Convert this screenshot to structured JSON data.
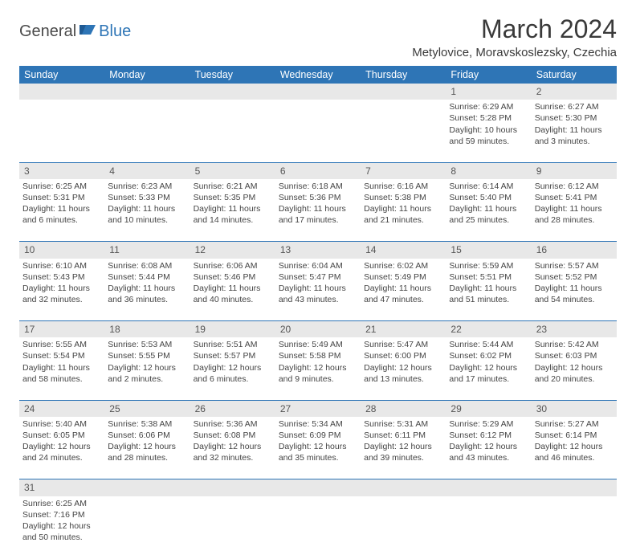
{
  "colors": {
    "header_bg": "#2e75b6",
    "header_fg": "#ffffff",
    "daynum_bg": "#e8e8e8",
    "row_divider": "#2e75b6",
    "text": "#444444",
    "logo_dark": "#4a4a4a",
    "logo_blue": "#2e75b6"
  },
  "typography": {
    "title_fontsize": 32,
    "location_fontsize": 15,
    "header_fontsize": 12.5,
    "daynum_fontsize": 12,
    "cell_fontsize": 10.5
  },
  "logo": {
    "part1": "General",
    "part2": "Blue"
  },
  "title": "March 2024",
  "location": "Metylovice, Moravskoslezsky, Czechia",
  "day_headers": [
    "Sunday",
    "Monday",
    "Tuesday",
    "Wednesday",
    "Thursday",
    "Friday",
    "Saturday"
  ],
  "weeks": [
    [
      {
        "n": "",
        "lines": []
      },
      {
        "n": "",
        "lines": []
      },
      {
        "n": "",
        "lines": []
      },
      {
        "n": "",
        "lines": []
      },
      {
        "n": "",
        "lines": []
      },
      {
        "n": "1",
        "lines": [
          "Sunrise: 6:29 AM",
          "Sunset: 5:28 PM",
          "Daylight: 10 hours",
          "and 59 minutes."
        ]
      },
      {
        "n": "2",
        "lines": [
          "Sunrise: 6:27 AM",
          "Sunset: 5:30 PM",
          "Daylight: 11 hours",
          "and 3 minutes."
        ]
      }
    ],
    [
      {
        "n": "3",
        "lines": [
          "Sunrise: 6:25 AM",
          "Sunset: 5:31 PM",
          "Daylight: 11 hours",
          "and 6 minutes."
        ]
      },
      {
        "n": "4",
        "lines": [
          "Sunrise: 6:23 AM",
          "Sunset: 5:33 PM",
          "Daylight: 11 hours",
          "and 10 minutes."
        ]
      },
      {
        "n": "5",
        "lines": [
          "Sunrise: 6:21 AM",
          "Sunset: 5:35 PM",
          "Daylight: 11 hours",
          "and 14 minutes."
        ]
      },
      {
        "n": "6",
        "lines": [
          "Sunrise: 6:18 AM",
          "Sunset: 5:36 PM",
          "Daylight: 11 hours",
          "and 17 minutes."
        ]
      },
      {
        "n": "7",
        "lines": [
          "Sunrise: 6:16 AM",
          "Sunset: 5:38 PM",
          "Daylight: 11 hours",
          "and 21 minutes."
        ]
      },
      {
        "n": "8",
        "lines": [
          "Sunrise: 6:14 AM",
          "Sunset: 5:40 PM",
          "Daylight: 11 hours",
          "and 25 minutes."
        ]
      },
      {
        "n": "9",
        "lines": [
          "Sunrise: 6:12 AM",
          "Sunset: 5:41 PM",
          "Daylight: 11 hours",
          "and 28 minutes."
        ]
      }
    ],
    [
      {
        "n": "10",
        "lines": [
          "Sunrise: 6:10 AM",
          "Sunset: 5:43 PM",
          "Daylight: 11 hours",
          "and 32 minutes."
        ]
      },
      {
        "n": "11",
        "lines": [
          "Sunrise: 6:08 AM",
          "Sunset: 5:44 PM",
          "Daylight: 11 hours",
          "and 36 minutes."
        ]
      },
      {
        "n": "12",
        "lines": [
          "Sunrise: 6:06 AM",
          "Sunset: 5:46 PM",
          "Daylight: 11 hours",
          "and 40 minutes."
        ]
      },
      {
        "n": "13",
        "lines": [
          "Sunrise: 6:04 AM",
          "Sunset: 5:47 PM",
          "Daylight: 11 hours",
          "and 43 minutes."
        ]
      },
      {
        "n": "14",
        "lines": [
          "Sunrise: 6:02 AM",
          "Sunset: 5:49 PM",
          "Daylight: 11 hours",
          "and 47 minutes."
        ]
      },
      {
        "n": "15",
        "lines": [
          "Sunrise: 5:59 AM",
          "Sunset: 5:51 PM",
          "Daylight: 11 hours",
          "and 51 minutes."
        ]
      },
      {
        "n": "16",
        "lines": [
          "Sunrise: 5:57 AM",
          "Sunset: 5:52 PM",
          "Daylight: 11 hours",
          "and 54 minutes."
        ]
      }
    ],
    [
      {
        "n": "17",
        "lines": [
          "Sunrise: 5:55 AM",
          "Sunset: 5:54 PM",
          "Daylight: 11 hours",
          "and 58 minutes."
        ]
      },
      {
        "n": "18",
        "lines": [
          "Sunrise: 5:53 AM",
          "Sunset: 5:55 PM",
          "Daylight: 12 hours",
          "and 2 minutes."
        ]
      },
      {
        "n": "19",
        "lines": [
          "Sunrise: 5:51 AM",
          "Sunset: 5:57 PM",
          "Daylight: 12 hours",
          "and 6 minutes."
        ]
      },
      {
        "n": "20",
        "lines": [
          "Sunrise: 5:49 AM",
          "Sunset: 5:58 PM",
          "Daylight: 12 hours",
          "and 9 minutes."
        ]
      },
      {
        "n": "21",
        "lines": [
          "Sunrise: 5:47 AM",
          "Sunset: 6:00 PM",
          "Daylight: 12 hours",
          "and 13 minutes."
        ]
      },
      {
        "n": "22",
        "lines": [
          "Sunrise: 5:44 AM",
          "Sunset: 6:02 PM",
          "Daylight: 12 hours",
          "and 17 minutes."
        ]
      },
      {
        "n": "23",
        "lines": [
          "Sunrise: 5:42 AM",
          "Sunset: 6:03 PM",
          "Daylight: 12 hours",
          "and 20 minutes."
        ]
      }
    ],
    [
      {
        "n": "24",
        "lines": [
          "Sunrise: 5:40 AM",
          "Sunset: 6:05 PM",
          "Daylight: 12 hours",
          "and 24 minutes."
        ]
      },
      {
        "n": "25",
        "lines": [
          "Sunrise: 5:38 AM",
          "Sunset: 6:06 PM",
          "Daylight: 12 hours",
          "and 28 minutes."
        ]
      },
      {
        "n": "26",
        "lines": [
          "Sunrise: 5:36 AM",
          "Sunset: 6:08 PM",
          "Daylight: 12 hours",
          "and 32 minutes."
        ]
      },
      {
        "n": "27",
        "lines": [
          "Sunrise: 5:34 AM",
          "Sunset: 6:09 PM",
          "Daylight: 12 hours",
          "and 35 minutes."
        ]
      },
      {
        "n": "28",
        "lines": [
          "Sunrise: 5:31 AM",
          "Sunset: 6:11 PM",
          "Daylight: 12 hours",
          "and 39 minutes."
        ]
      },
      {
        "n": "29",
        "lines": [
          "Sunrise: 5:29 AM",
          "Sunset: 6:12 PM",
          "Daylight: 12 hours",
          "and 43 minutes."
        ]
      },
      {
        "n": "30",
        "lines": [
          "Sunrise: 5:27 AM",
          "Sunset: 6:14 PM",
          "Daylight: 12 hours",
          "and 46 minutes."
        ]
      }
    ],
    [
      {
        "n": "31",
        "lines": [
          "Sunrise: 6:25 AM",
          "Sunset: 7:16 PM",
          "Daylight: 12 hours",
          "and 50 minutes."
        ]
      },
      {
        "n": "",
        "lines": []
      },
      {
        "n": "",
        "lines": []
      },
      {
        "n": "",
        "lines": []
      },
      {
        "n": "",
        "lines": []
      },
      {
        "n": "",
        "lines": []
      },
      {
        "n": "",
        "lines": []
      }
    ]
  ]
}
